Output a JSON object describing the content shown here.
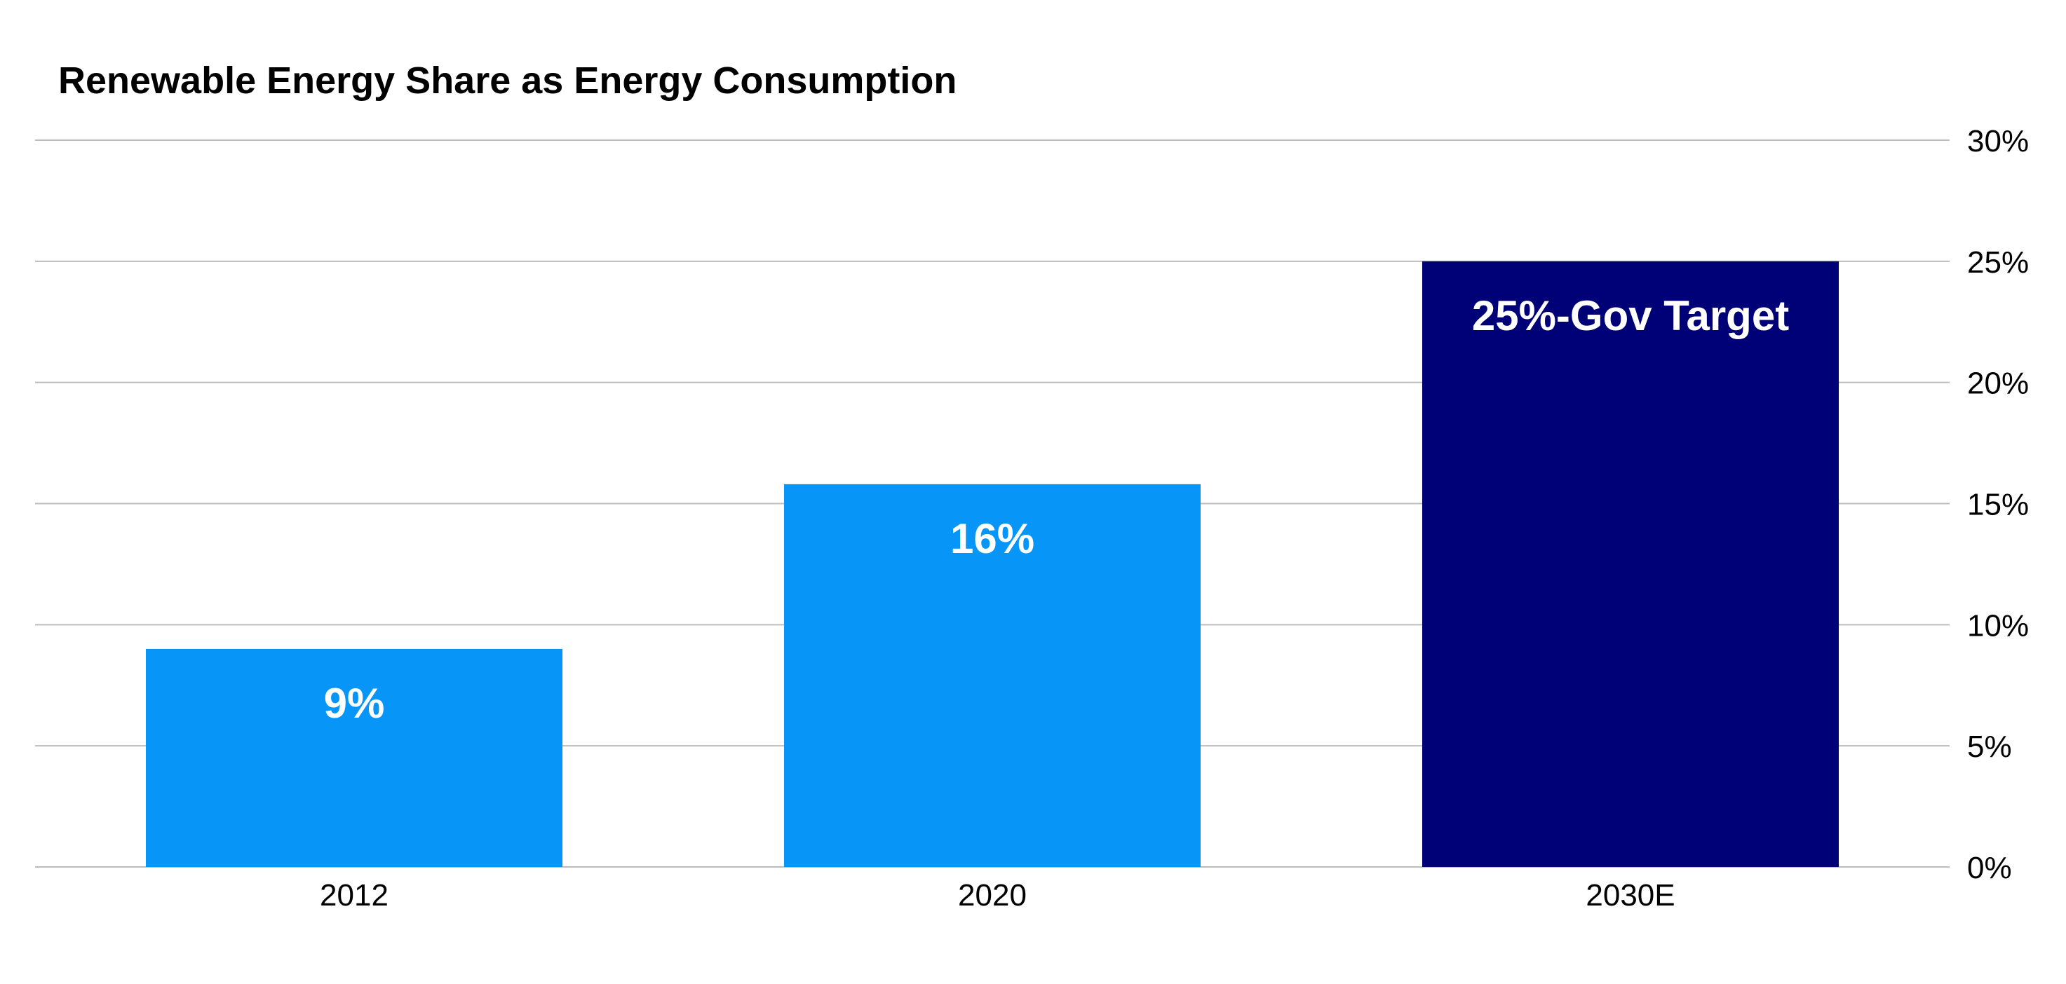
{
  "chart_data": {
    "type": "bar",
    "title": "Renewable Energy Share as Energy Consumption",
    "xlabel": "",
    "ylabel": "",
    "categories": [
      "2012",
      "2020",
      "2030E"
    ],
    "values": [
      9,
      15.8,
      25
    ],
    "data_labels": [
      "9%",
      "16%",
      "25%-Gov Target"
    ],
    "bar_colors": [
      "#0796F7",
      "#0796F7",
      "#000077"
    ],
    "ylim": [
      0,
      30
    ],
    "yticks": [
      0,
      5,
      10,
      15,
      20,
      25,
      30
    ],
    "ytick_labels": [
      "0%",
      "5%",
      "10%",
      "15%",
      "20%",
      "25%",
      "30%"
    ],
    "y_axis_side": "right",
    "grid": true,
    "gridline_color": "#BDBDBD",
    "legend": "none"
  }
}
